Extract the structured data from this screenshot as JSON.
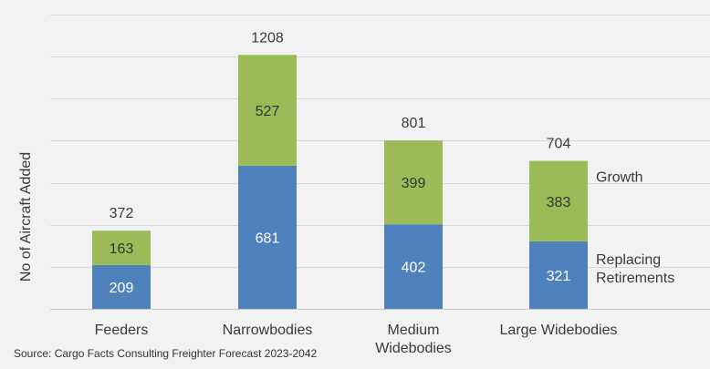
{
  "chart_data": {
    "type": "bar",
    "stacked": true,
    "ylabel": "No of Aircraft Added",
    "ylim": [
      0,
      1400
    ],
    "grid": true,
    "categories": [
      "Feeders",
      "Narrowbodies",
      "Medium Widebodies",
      "Large Widebodies"
    ],
    "category_lines": [
      [
        "Feeders"
      ],
      [
        "Narrowbodies"
      ],
      [
        "Medium",
        "Widebodies"
      ],
      [
        "Large Widebodies"
      ]
    ],
    "series": [
      {
        "name": "Replacing Retirements",
        "name_lines": [
          "Replacing",
          "Retirements"
        ],
        "color": "#4f81bd",
        "label_color": "#ffffff",
        "values": [
          209,
          681,
          402,
          321
        ]
      },
      {
        "name": "Growth",
        "name_lines": [
          "Growth"
        ],
        "color": "#9bbb59",
        "label_color": "#333333",
        "values": [
          163,
          527,
          399,
          383
        ]
      }
    ],
    "totals": [
      372,
      1208,
      801,
      704
    ]
  },
  "source": "Source: Cargo Facts Consulting Freighter Forecast 2023-2042"
}
